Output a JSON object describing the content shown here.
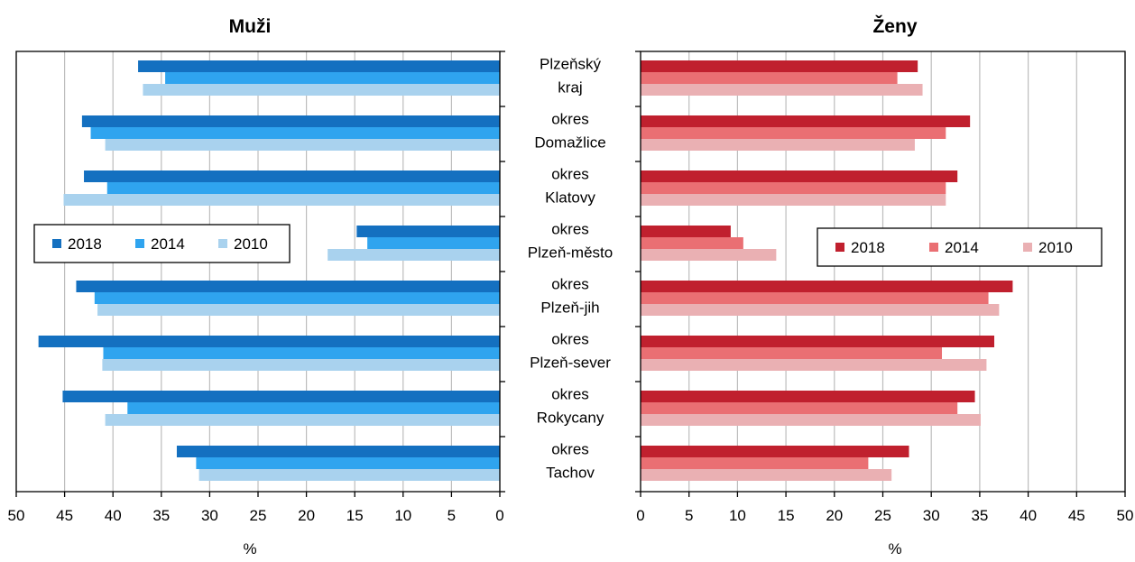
{
  "chart_data": {
    "type": "bar",
    "orientation": "horizontal",
    "categories": [
      [
        "Plzeňský",
        "kraj"
      ],
      [
        "okres",
        "Domažlice"
      ],
      [
        "okres",
        "Klatovy"
      ],
      [
        "okres",
        "Plzeň-město"
      ],
      [
        "okres",
        "Plzeň-jih"
      ],
      [
        "okres",
        "Plzeň-sever"
      ],
      [
        "okres",
        "Rokycany"
      ],
      [
        "okres",
        "Tachov"
      ]
    ],
    "panels": [
      {
        "title": "Muži",
        "xlabel": "%",
        "xlim": [
          50,
          0
        ],
        "ticks": [
          50,
          45,
          40,
          35,
          30,
          25,
          20,
          15,
          10,
          5,
          0
        ],
        "reversed": true,
        "grid": true,
        "legend_position": "middle-left",
        "series": [
          {
            "name": "2018",
            "color": "#1470c0",
            "values": [
              37.4,
              43.2,
              43.0,
              14.8,
              43.8,
              47.7,
              45.2,
              33.4
            ]
          },
          {
            "name": "2014",
            "color": "#2fa4ef",
            "values": [
              34.6,
              42.3,
              40.6,
              13.7,
              41.9,
              41.0,
              38.5,
              31.4
            ]
          },
          {
            "name": "2010",
            "color": "#a9d2ee",
            "values": [
              36.9,
              40.8,
              45.1,
              17.8,
              41.6,
              41.1,
              40.8,
              31.1
            ]
          }
        ]
      },
      {
        "title": "Ženy",
        "xlabel": "%",
        "xlim": [
          0,
          50
        ],
        "ticks": [
          0,
          5,
          10,
          15,
          20,
          25,
          30,
          35,
          40,
          45,
          50
        ],
        "reversed": false,
        "grid": true,
        "legend_position": "middle-right",
        "series": [
          {
            "name": "2018",
            "color": "#c0202e",
            "values": [
              28.6,
              34.0,
              32.7,
              9.3,
              38.4,
              36.5,
              34.5,
              27.7
            ]
          },
          {
            "name": "2014",
            "color": "#ea6f73",
            "values": [
              26.5,
              31.5,
              31.5,
              10.6,
              35.9,
              31.1,
              32.7,
              23.5
            ]
          },
          {
            "name": "2010",
            "color": "#eab0b3",
            "values": [
              29.1,
              28.3,
              31.5,
              14.0,
              37.0,
              35.7,
              35.1,
              25.9
            ]
          }
        ]
      }
    ]
  }
}
